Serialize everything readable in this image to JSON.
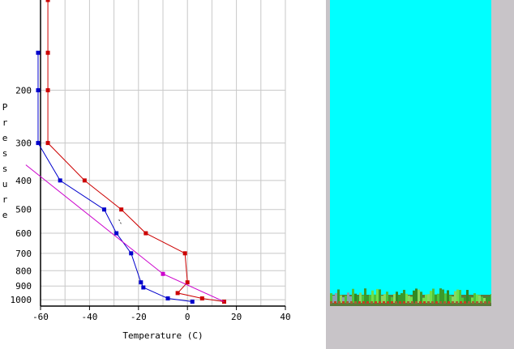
{
  "chart_data": {
    "type": "line",
    "title": "",
    "xlabel": "Temperature (C)",
    "ylabel": "Pressure",
    "xlim": [
      -60,
      40
    ],
    "ylim": [
      1050,
      100
    ],
    "yscale": "log",
    "grid": true,
    "x_ticks": [
      -60,
      -40,
      -20,
      0,
      20,
      40
    ],
    "y_ticks": [
      200,
      300,
      400,
      500,
      600,
      700,
      800,
      900,
      1000
    ],
    "series": [
      {
        "color": "#cc0000",
        "points": [
          {
            "x": 15,
            "p": 1015
          },
          {
            "x": 6,
            "p": 990
          },
          {
            "x": -4,
            "p": 950
          },
          {
            "x": 0,
            "p": 875
          },
          {
            "x": -1,
            "p": 700
          },
          {
            "x": -17,
            "p": 600
          },
          {
            "x": -27,
            "p": 500
          },
          {
            "x": -42,
            "p": 400
          },
          {
            "x": -57,
            "p": 300
          },
          {
            "x": -57,
            "p": 200
          },
          {
            "x": -57,
            "p": 150
          },
          {
            "x": -57,
            "p": 100
          }
        ]
      },
      {
        "color": "#0000cc",
        "points": [
          {
            "x": 2,
            "p": 1015
          },
          {
            "x": -8,
            "p": 990
          },
          {
            "x": -18,
            "p": 910
          },
          {
            "x": -19,
            "p": 875
          },
          {
            "x": -23,
            "p": 700
          },
          {
            "x": -29,
            "p": 600
          },
          {
            "x": -34,
            "p": 500
          },
          {
            "x": -52,
            "p": 400
          },
          {
            "x": -61,
            "p": 300
          },
          {
            "x": -61,
            "p": 200
          },
          {
            "x": -61,
            "p": 150
          }
        ]
      },
      {
        "color": "#cc00cc",
        "points": [
          {
            "x": 15,
            "p": 1015
          },
          {
            "x": -10,
            "p": 820
          },
          {
            "x": -66,
            "p": 355
          }
        ]
      }
    ],
    "annotations": [
      {
        "type": "dashed",
        "x1": -28,
        "p1": 540,
        "x2": -27,
        "p2": 560
      }
    ]
  },
  "sky_panel": {
    "color": "#00ffff",
    "ground_color": "#5ad84c"
  }
}
